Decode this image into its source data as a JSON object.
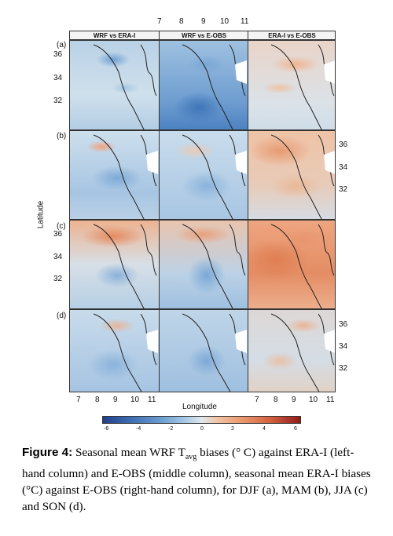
{
  "figure": {
    "column_titles": [
      "WRF vs ERA-I",
      "WRF vs E-OBS",
      "ERA-I vs E-OBS"
    ],
    "row_labels": [
      "(a)",
      "(b)",
      "(c)",
      "(d)"
    ],
    "top_longitude_ticks": [
      "7",
      "8",
      "9",
      "10",
      "11"
    ],
    "bottom_longitude_ticks": [
      "7",
      "8",
      "9",
      "10",
      "11"
    ],
    "lat_ticks": [
      "36",
      "34",
      "32"
    ],
    "y_axis_label": "Latitude",
    "x_axis_label": "Longitude",
    "colorbar_ticks": [
      "-6",
      "-4",
      "-2",
      "0",
      "2",
      "4",
      "6"
    ],
    "colors": {
      "cool_dark": "#2a4a8c",
      "cool_mid": "#5f96cc",
      "cool_light": "#b7d2e8",
      "neutral": "#dbe6ee",
      "warm_light": "#f1b88f",
      "warm_mid": "#e0774b",
      "warm_dark": "#8e1b1b"
    }
  },
  "caption": {
    "label": "Figure 4:",
    "text_part1": " Seasonal mean WRF T",
    "subscript": "avg",
    "text_part2": " biases (° C) against ERA-I (left-hand column) and E-OBS (middle column), seasonal mean ERA-I biases (°C) against E-OBS (right-hand column), for DJF (a), MAM (b), JJA (c) and SON (d)."
  }
}
